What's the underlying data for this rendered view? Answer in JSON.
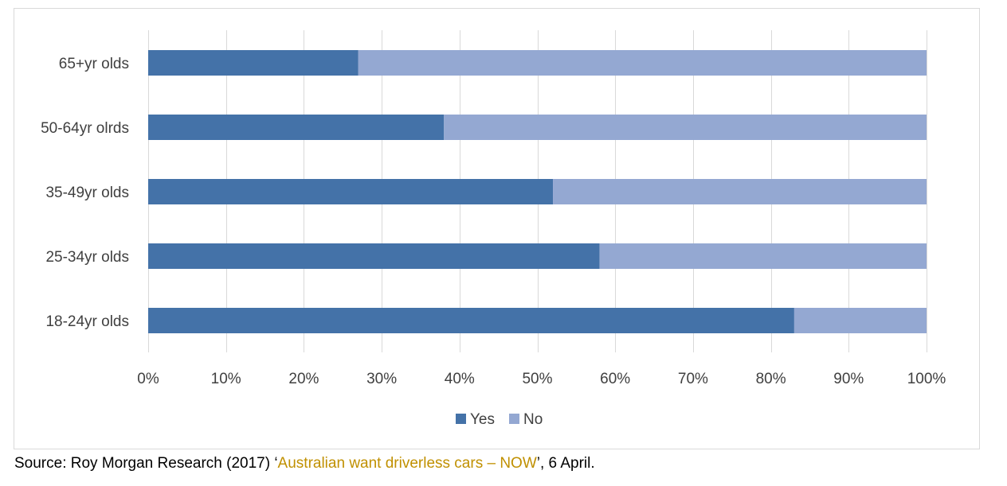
{
  "chart_data": {
    "type": "bar",
    "orientation": "horizontal",
    "stacked": true,
    "percent": true,
    "categories": [
      "65+yr olds",
      "50-64yr olrds",
      "35-49yr olds",
      "25-34yr olds",
      "18-24yr olds"
    ],
    "series": [
      {
        "name": "Yes",
        "values": [
          27,
          38,
          52,
          58,
          83
        ],
        "color": "#4472a8"
      },
      {
        "name": "No",
        "values": [
          73,
          62,
          48,
          42,
          17
        ],
        "color": "#94a8d2"
      }
    ],
    "xlim": [
      0,
      100
    ],
    "x_ticks": [
      "0%",
      "10%",
      "20%",
      "30%",
      "40%",
      "50%",
      "60%",
      "70%",
      "80%",
      "90%",
      "100%"
    ],
    "grid": true,
    "legend_position": "bottom"
  },
  "source": {
    "prefix": "Source: Roy Morgan Research (2017) ‘",
    "link_text": "Australian want driverless cars – NOW",
    "suffix": "’, 6 April."
  }
}
